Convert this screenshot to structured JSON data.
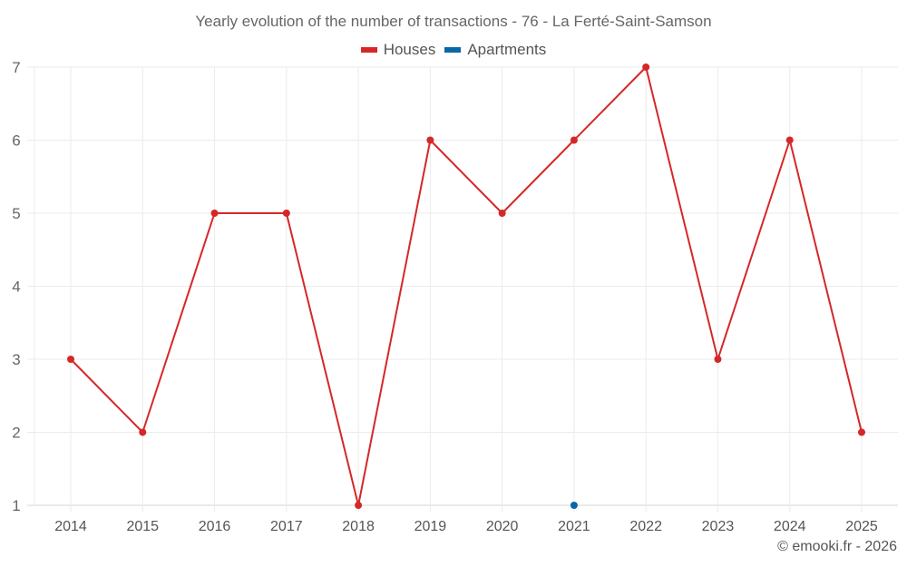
{
  "chart_data": {
    "type": "line",
    "title": "Yearly evolution of the number of transactions - 76 - La Ferté-Saint-Samson",
    "xlabel": "",
    "ylabel": "",
    "categories": [
      "2014",
      "2015",
      "2016",
      "2017",
      "2018",
      "2019",
      "2020",
      "2021",
      "2022",
      "2023",
      "2024",
      "2025"
    ],
    "series": [
      {
        "name": "Houses",
        "color": "#d62728",
        "values": [
          3,
          2,
          5,
          5,
          1,
          6,
          5,
          6,
          7,
          3,
          6,
          2
        ]
      },
      {
        "name": "Apartments",
        "color": "#0868a5",
        "values": [
          null,
          null,
          null,
          null,
          null,
          null,
          null,
          1,
          null,
          null,
          null,
          null
        ]
      }
    ],
    "yticks": [
      1,
      2,
      3,
      4,
      5,
      6,
      7
    ],
    "ylim": [
      1,
      7
    ],
    "grid": true,
    "legend_position": "top"
  },
  "legend": {
    "houses_label": "Houses",
    "apartments_label": "Apartments"
  },
  "credit": "© emooki.fr - 2026"
}
